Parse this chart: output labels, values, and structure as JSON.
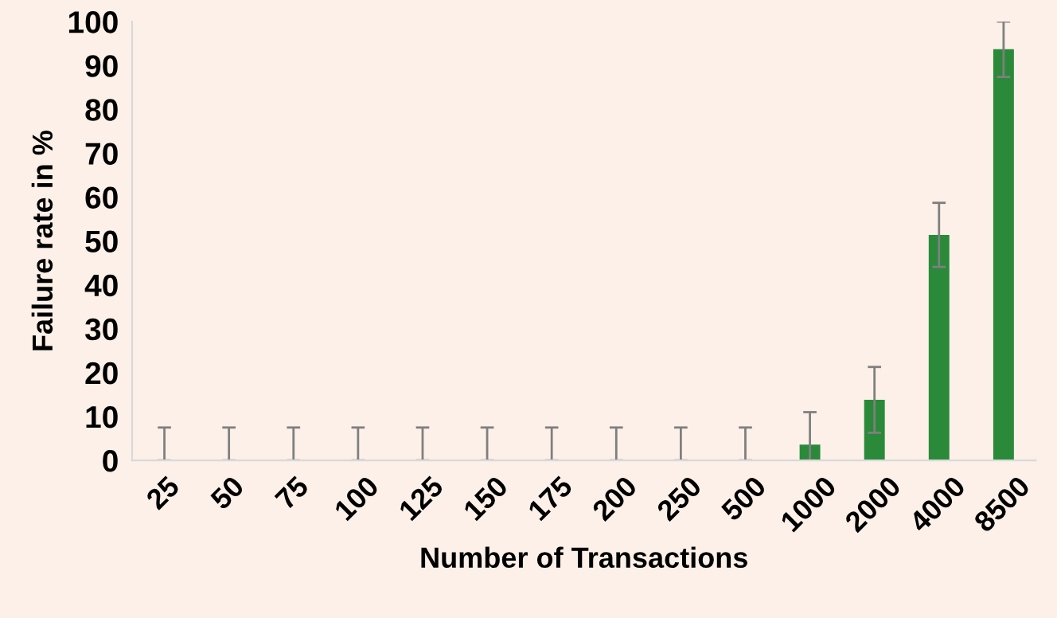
{
  "chart_data": {
    "type": "bar",
    "xlabel": "Number of Transactions",
    "ylabel": "Failure rate in %",
    "categories": [
      "25",
      "50",
      "75",
      "100",
      "125",
      "150",
      "175",
      "200",
      "250",
      "500",
      "1000",
      "2000",
      "4000",
      "8500"
    ],
    "values": [
      0,
      0,
      0,
      0,
      0,
      0,
      0,
      0,
      0,
      0,
      3.6,
      13.8,
      51.4,
      93.7
    ],
    "errors": [
      [
        0,
        7.5
      ],
      [
        0,
        7.5
      ],
      [
        0,
        7.5
      ],
      [
        0,
        7.5
      ],
      [
        0,
        7.5
      ],
      [
        0,
        7.5
      ],
      [
        0,
        7.5
      ],
      [
        0,
        7.5
      ],
      [
        0,
        7.5
      ],
      [
        0,
        7.5
      ],
      [
        0,
        11
      ],
      7.5,
      7.3,
      6.3
    ],
    "color": "#2a8a3a",
    "ylim": [
      0,
      100
    ],
    "yticks": [
      0,
      10,
      20,
      30,
      40,
      50,
      60,
      70,
      80,
      90,
      100
    ],
    "grid": false,
    "legend": false
  }
}
